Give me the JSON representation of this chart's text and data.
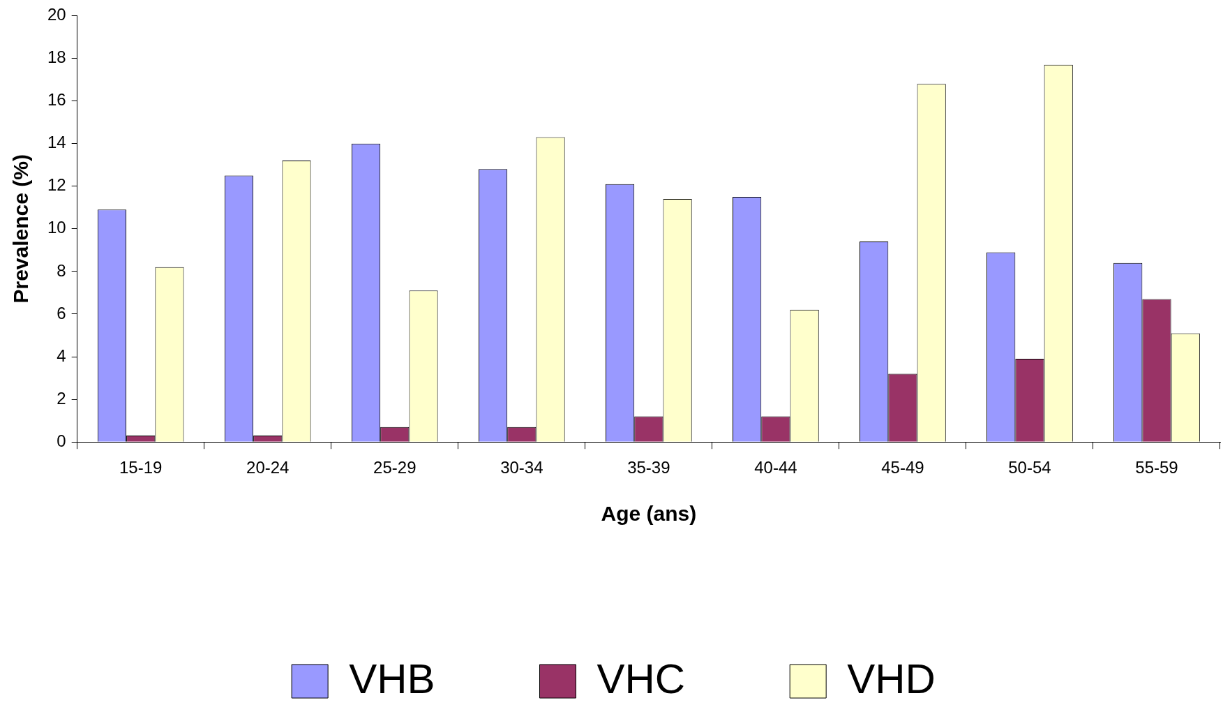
{
  "chart_data": {
    "type": "bar",
    "xlabel": "Age (ans)",
    "ylabel": "Prevalence (%)",
    "categories": [
      "15-19",
      "20-24",
      "25-29",
      "30-34",
      "35-39",
      "40-44",
      "45-49",
      "50-54",
      "55-59"
    ],
    "series": [
      {
        "name": "VHB",
        "color": "#9999ff",
        "values": [
          10.9,
          12.5,
          14.0,
          12.8,
          12.1,
          11.5,
          9.4,
          8.9,
          8.4
        ]
      },
      {
        "name": "VHC",
        "color": "#993366",
        "values": [
          0.3,
          0.3,
          0.7,
          0.7,
          1.2,
          1.2,
          3.2,
          3.9,
          6.7
        ]
      },
      {
        "name": "VHD",
        "color": "#ffffcc",
        "values": [
          8.2,
          13.2,
          7.1,
          14.3,
          11.4,
          6.2,
          16.8,
          17.7,
          5.1
        ]
      }
    ],
    "ylim": [
      0,
      20
    ],
    "yticks": [
      0,
      2,
      4,
      6,
      8,
      10,
      12,
      14,
      16,
      18,
      20
    ],
    "grid": false,
    "legend": "bottom"
  }
}
